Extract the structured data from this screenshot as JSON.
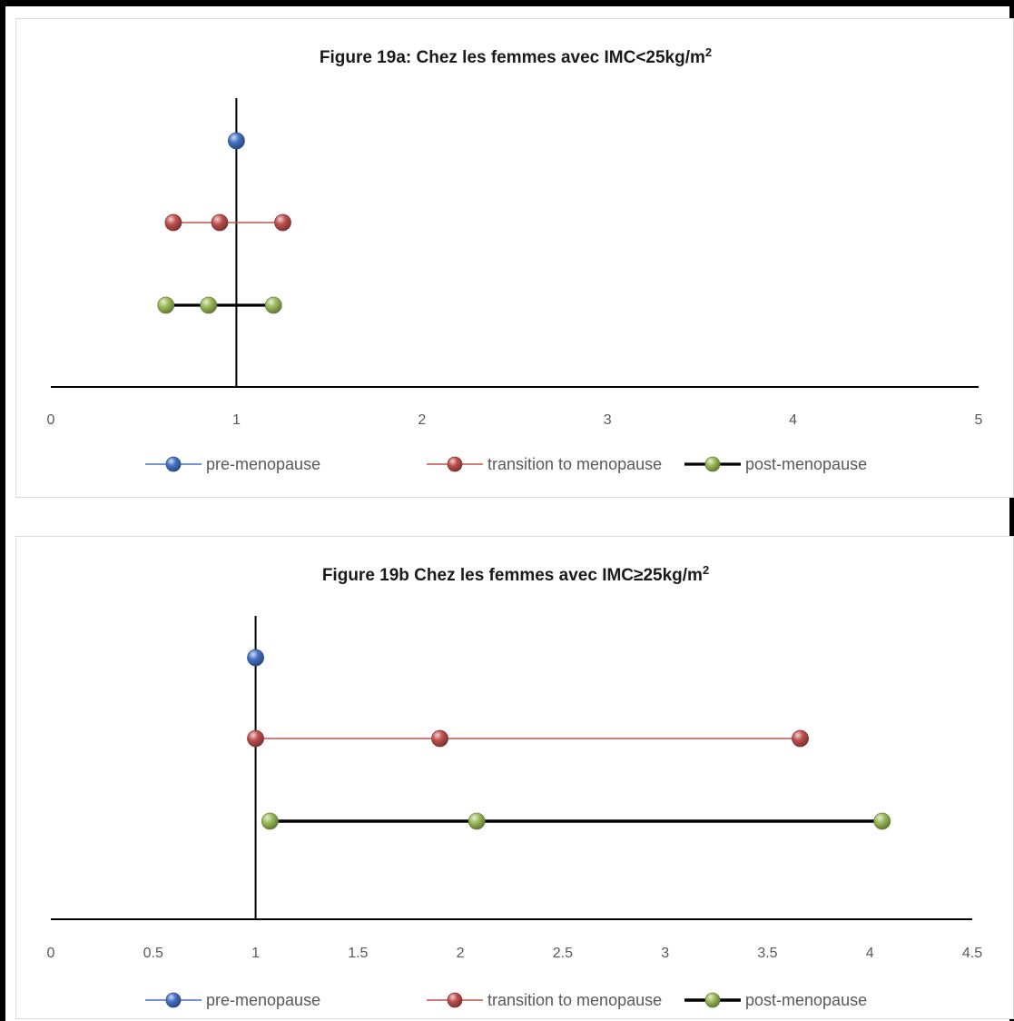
{
  "chart_data": [
    {
      "type": "scatter",
      "title": "Figure 19a: Chez les femmes avec IMC<25kg/m",
      "title_sup": "2",
      "xlim": [
        0,
        5
      ],
      "x_ticks": [
        "0",
        "1",
        "2",
        "3",
        "4",
        "5"
      ],
      "tick_values": [
        0,
        1,
        2,
        3,
        4,
        5
      ],
      "reference_line_x": 1,
      "legend_position": "bottom",
      "series": [
        {
          "name": "pre-menopause",
          "color": "#4472c4",
          "marker_icon": "blue-sphere-icon",
          "points": [
            1.0
          ]
        },
        {
          "name": "transition to menopause",
          "color": "#c0504d",
          "marker_icon": "red-sphere-icon",
          "points": [
            0.66,
            0.91,
            1.25
          ]
        },
        {
          "name": "post-menopause",
          "color": "#9bbb59",
          "line_color": "#000000",
          "marker_icon": "green-sphere-icon",
          "points": [
            0.62,
            0.85,
            1.2
          ]
        }
      ]
    },
    {
      "type": "scatter",
      "title": "Figure 19b Chez les femmes avec IMC≥25kg/m",
      "title_sup": "2",
      "xlim": [
        0,
        4.5
      ],
      "x_ticks": [
        "0",
        "0.5",
        "1",
        "1.5",
        "2",
        "2.5",
        "3",
        "3.5",
        "4",
        "4.5"
      ],
      "tick_values": [
        0,
        0.5,
        1,
        1.5,
        2,
        2.5,
        3,
        3.5,
        4,
        4.5
      ],
      "reference_line_x": 1,
      "legend_position": "bottom",
      "series": [
        {
          "name": "pre-menopause",
          "color": "#4472c4",
          "marker_icon": "blue-sphere-icon",
          "points": [
            1.0
          ]
        },
        {
          "name": "transition to menopause",
          "color": "#c0504d",
          "marker_icon": "red-sphere-icon",
          "points": [
            1.0,
            1.9,
            3.66
          ]
        },
        {
          "name": "post-menopause",
          "color": "#9bbb59",
          "line_color": "#000000",
          "marker_icon": "green-sphere-icon",
          "points": [
            1.07,
            2.08,
            4.06
          ]
        }
      ]
    }
  ]
}
